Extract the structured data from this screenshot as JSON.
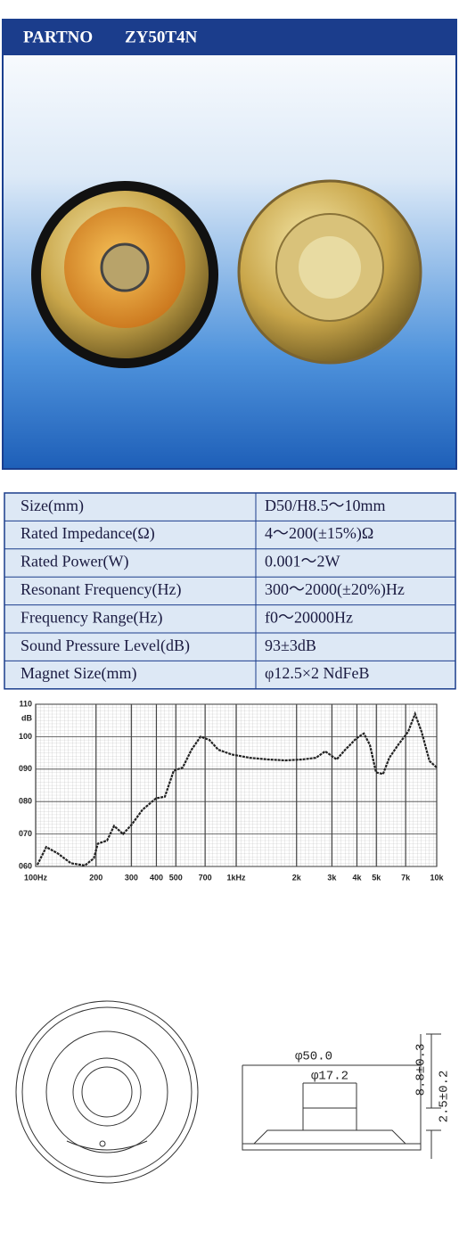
{
  "header": {
    "label": "PARTNO",
    "part": "ZY50T4N"
  },
  "table": {
    "rows": [
      [
        "Size(mm)",
        "D50/H8.5～10mm"
      ],
      [
        "Rated Impedance(Ω)",
        "4～200(±15%)Ω"
      ],
      [
        "Rated Power(W)",
        "0.001～2W"
      ],
      [
        "Resonant Frequency(Hz)",
        "300～2000(±20%)Hz"
      ],
      [
        "Frequency Range(Hz)",
        "f0～20000Hz"
      ],
      [
        "Sound Pressure Level(dB)",
        "93±3dB"
      ],
      [
        "Magnet Size(mm)",
        "φ12.5×2 NdFeB"
      ]
    ]
  },
  "chart_data": {
    "type": "line",
    "y_label": "dB",
    "log_x": true,
    "grid": true,
    "color": "#222222",
    "xlim": [
      100,
      10000
    ],
    "ylim": [
      60,
      110
    ],
    "xticks": [
      {
        "value": 100,
        "label": "100Hz"
      },
      200,
      300,
      400,
      500,
      700,
      {
        "value": 1000,
        "label": "1kHz"
      },
      {
        "value": 2000,
        "label": "2k"
      },
      {
        "value": 3000,
        "label": "3k"
      },
      {
        "value": 4000,
        "label": "4k"
      },
      {
        "value": 5000,
        "label": "5k"
      },
      {
        "value": 7000,
        "label": "7k"
      },
      {
        "value": 10000,
        "label": "10k"
      }
    ],
    "yticks": [
      {
        "value": 60,
        "label": "060"
      },
      {
        "value": 70,
        "label": "070"
      },
      {
        "value": 80,
        "label": "080"
      },
      {
        "value": 90,
        "label": "090"
      },
      100,
      110
    ],
    "x": [
      102,
      113,
      129,
      150,
      176,
      195,
      204,
      227,
      246,
      273,
      302,
      341,
      398,
      441,
      488,
      541,
      599,
      664,
      735,
      814,
      950,
      1170,
      1430,
      1760,
      2150,
      2500,
      2780,
      3170,
      3500,
      3980,
      4330,
      4640,
      4980,
      5400,
      5800,
      6430,
      7200,
      7800,
      8400,
      9200,
      10000
    ],
    "values": [
      60.5,
      66,
      64,
      61,
      60.3,
      62.5,
      67,
      68,
      72.5,
      70,
      73,
      77.5,
      81,
      81.5,
      89.5,
      90.5,
      96,
      100,
      99,
      96,
      94.5,
      93.5,
      93,
      92.7,
      93,
      93.5,
      95.5,
      93,
      96,
      99.5,
      101,
      97.5,
      89,
      88.5,
      93.5,
      97.5,
      101.5,
      107,
      101.5,
      92.5,
      90.5
    ]
  },
  "drawing": {
    "dimensions": [
      "φ50.0",
      "φ17.2",
      "8.8±0.3",
      "2.5±0.2"
    ]
  }
}
